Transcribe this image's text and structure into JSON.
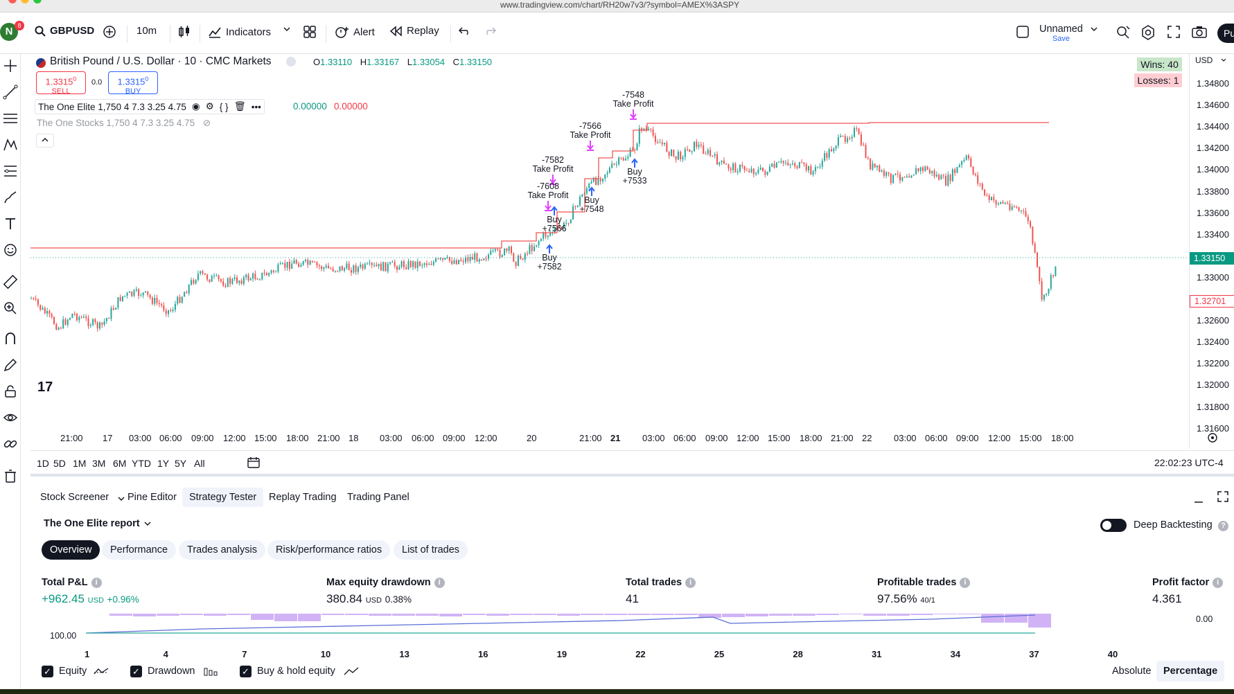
{
  "browser": {
    "url": "www.tradingview.com/chart/RH20w7v3/?symbol=AMEX%3ASPY"
  },
  "topbar": {
    "avatar_letter": "N",
    "avatar_badge": "8",
    "symbol": "GBPUSD",
    "interval": "10m",
    "indicators_label": "Indicators",
    "alert_label": "Alert",
    "replay_label": "Replay",
    "layout_name": "Unnamed",
    "save_label": "Save",
    "publish_label": "Pu"
  },
  "legend": {
    "title": "British Pound / U.S. Dollar · 10 · CMC Markets",
    "open_label": "O",
    "open": "1.33110",
    "high_label": "H",
    "high": "1.33167",
    "low_label": "L",
    "low": "1.33054",
    "close_label": "C",
    "close": "1.33150",
    "sell_price": "1.3315",
    "sell_sup": "0",
    "sell_label": "SELL",
    "spread": "0.0",
    "buy_price": "1.3315",
    "buy_sup": "0",
    "buy_label": "BUY",
    "indicator1": "The One Elite 1,750 4 7.3 3.25 4.75",
    "indicator1_v1": "0.00000",
    "indicator1_v2": "0.00000",
    "indicator2": "The One Stocks 1,750 4 7.3 3.25 4.75"
  },
  "winloss": {
    "wins": "Wins: 40",
    "losses": "Losses: 1"
  },
  "price_axis": {
    "currency": "USD",
    "ticks": [
      "1.34800",
      "1.34600",
      "1.34400",
      "1.34200",
      "1.34000",
      "1.33800",
      "1.33600",
      "1.33400",
      "1.33200",
      "1.33000",
      "1.32800",
      "1.32600",
      "1.32400",
      "1.32200",
      "1.32000",
      "1.31800",
      "1.31600"
    ],
    "current_price": "1.33150",
    "level_price": "1.32701"
  },
  "time_axis": [
    "21:00",
    "17",
    "03:00",
    "06:00",
    "09:00",
    "12:00",
    "15:00",
    "18:00",
    "21:00",
    "18",
    "03:00",
    "06:00",
    "09:00",
    "12:00",
    "20",
    "21:00",
    "21",
    "03:00",
    "06:00",
    "09:00",
    "12:00",
    "15:00",
    "18:00",
    "21:00",
    "22",
    "03:00",
    "06:00",
    "09:00",
    "12:00",
    "15:00",
    "18:00"
  ],
  "trade_labels": [
    {
      "line1": "-7548",
      "line2": "Take Profit"
    },
    {
      "line1": "-7566",
      "line2": "Take Profit"
    },
    {
      "line1": "-7582",
      "line2": "Take Profit"
    },
    {
      "line1": "-7608",
      "line2": "Take Profit"
    },
    {
      "line1": "Buy",
      "line2": "+7533"
    },
    {
      "line1": "Buy",
      "line2": "+7548"
    },
    {
      "line1": "Buy",
      "line2": "+7566"
    },
    {
      "line1": "Buy",
      "line2": "+7582"
    }
  ],
  "range_bar": {
    "ranges": [
      "1D",
      "5D",
      "1M",
      "3M",
      "6M",
      "YTD",
      "1Y",
      "5Y",
      "All"
    ],
    "clock": "22:02:23 UTC-4"
  },
  "bottom": {
    "tabs": [
      "Stock Screener",
      "Pine Editor",
      "Strategy Tester",
      "Replay Trading",
      "Trading Panel"
    ],
    "report_title": "The One Elite report",
    "deep_backtesting": "Deep Backtesting",
    "subtabs": [
      "Overview",
      "Performance",
      "Trades analysis",
      "Risk/performance ratios",
      "List of trades"
    ],
    "metrics": {
      "pnl_label": "Total P&L",
      "pnl_value": "+962.45",
      "pnl_unit": "USD",
      "pnl_pct": "+0.96%",
      "dd_label": "Max equity drawdown",
      "dd_value": "380.84",
      "dd_unit": "USD",
      "dd_pct": "0.38%",
      "trades_label": "Total trades",
      "trades_value": "41",
      "profitable_label": "Profitable trades",
      "profitable_value": "97.56%",
      "profitable_ratio": "40/1",
      "pf_label": "Profit factor",
      "pf_value": "4.361"
    },
    "equity_chart": {
      "y_right": "0.00",
      "y_left": "100.00",
      "x_ticks": [
        "1",
        "4",
        "7",
        "10",
        "13",
        "16",
        "19",
        "22",
        "25",
        "28",
        "31",
        "34",
        "37",
        "40"
      ]
    },
    "legend": {
      "equity": "Equity",
      "drawdown": "Drawdown",
      "buyhold": "Buy & hold equity",
      "absolute": "Absolute",
      "percentage": "Percentage"
    }
  },
  "colors": {
    "up": "#26a69a",
    "down": "#ef5350",
    "accent": "#2962ff",
    "profit": "#089981",
    "loss": "#f23645"
  }
}
